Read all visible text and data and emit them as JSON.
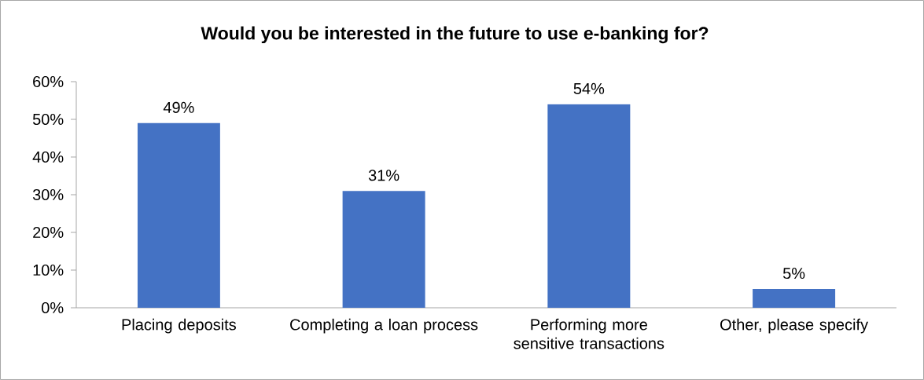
{
  "chart_data": {
    "type": "bar",
    "title": "Would you be interested in the future to use e-banking for?",
    "categories": [
      "Placing deposits",
      "Completing a loan process",
      "Performing more sensitive transactions",
      "Other, please specify"
    ],
    "values": [
      49,
      31,
      54,
      5
    ],
    "value_labels": [
      "49%",
      "31%",
      "54%",
      "5%"
    ],
    "color": "#4472c4",
    "ylim": [
      0,
      60
    ],
    "yticks": [
      {
        "value": 0,
        "label": "0%"
      },
      {
        "value": 10,
        "label": "10%"
      },
      {
        "value": 20,
        "label": "20%"
      },
      {
        "value": 30,
        "label": "30%"
      },
      {
        "value": 40,
        "label": "40%"
      },
      {
        "value": 50,
        "label": "50%"
      },
      {
        "value": 60,
        "label": "60%"
      }
    ]
  }
}
